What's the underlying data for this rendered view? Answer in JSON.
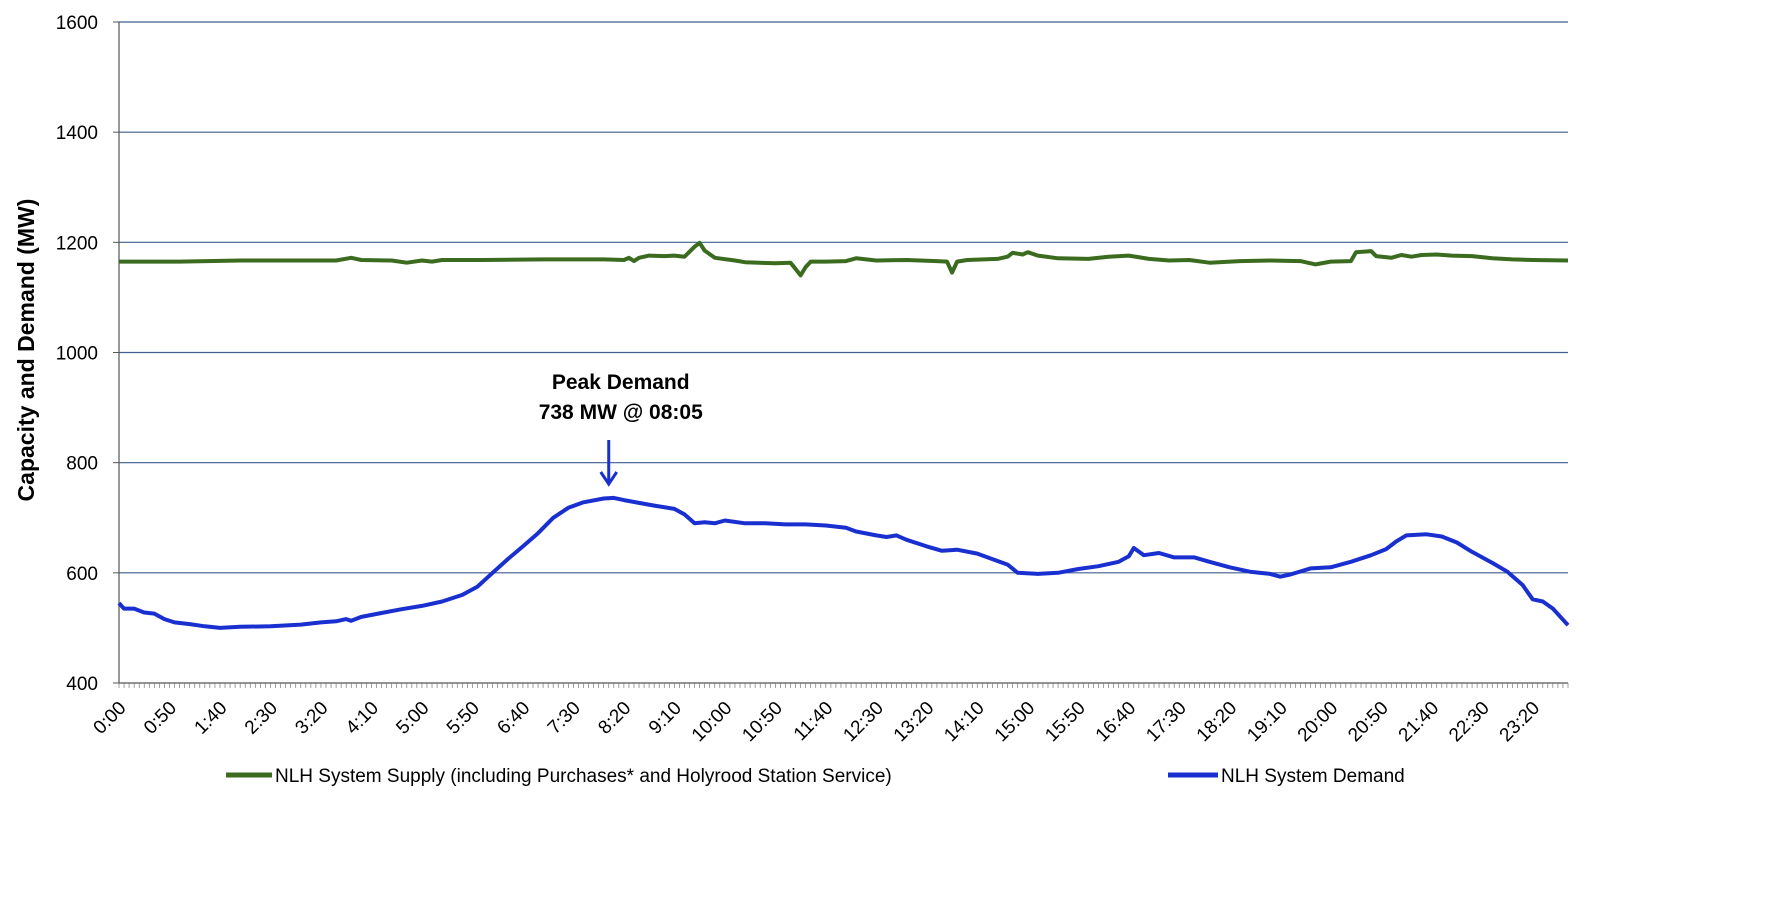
{
  "chart_data": {
    "type": "line",
    "title": "",
    "xlabel": "",
    "ylabel": "Capacity and Demand (MW)",
    "ylim": [
      400,
      1600
    ],
    "yticks": [
      400,
      600,
      800,
      1000,
      1200,
      1400,
      1600
    ],
    "xlim_minutes": [
      0,
      1435
    ],
    "x_tick_labels": [
      "0:00",
      "0:50",
      "1:40",
      "2:30",
      "3:20",
      "4:10",
      "5:00",
      "5:50",
      "6:40",
      "7:30",
      "8:20",
      "9:10",
      "10:00",
      "10:50",
      "11:40",
      "12:30",
      "13:20",
      "14:10",
      "15:00",
      "15:50",
      "16:40",
      "17:30",
      "18:20",
      "19:10",
      "20:00",
      "20:50",
      "21:40",
      "22:30",
      "23:20"
    ],
    "grid": "horizontal",
    "legend_position": "bottom",
    "series": [
      {
        "name": "NLH System Supply (including Purchases* and Holyrood Station Service)",
        "color": "#3a6b1f",
        "points": [
          [
            "0:00",
            1165
          ],
          [
            "1:00",
            1165
          ],
          [
            "2:00",
            1167
          ],
          [
            "3:00",
            1167
          ],
          [
            "3:35",
            1167
          ],
          [
            "3:50",
            1172
          ],
          [
            "4:00",
            1168
          ],
          [
            "4:30",
            1167
          ],
          [
            "4:45",
            1163
          ],
          [
            "5:00",
            1167
          ],
          [
            "5:10",
            1165
          ],
          [
            "5:20",
            1168
          ],
          [
            "6:00",
            1168
          ],
          [
            "7:00",
            1169
          ],
          [
            "8:00",
            1169
          ],
          [
            "8:20",
            1168
          ],
          [
            "8:25",
            1172
          ],
          [
            "8:30",
            1166
          ],
          [
            "8:35",
            1172
          ],
          [
            "8:45",
            1176
          ],
          [
            "9:00",
            1175
          ],
          [
            "9:10",
            1176
          ],
          [
            "9:20",
            1174
          ],
          [
            "9:30",
            1192
          ],
          [
            "9:35",
            1199
          ],
          [
            "9:40",
            1185
          ],
          [
            "9:50",
            1172
          ],
          [
            "10:10",
            1167
          ],
          [
            "10:20",
            1164
          ],
          [
            "10:50",
            1162
          ],
          [
            "11:05",
            1163
          ],
          [
            "11:10",
            1152
          ],
          [
            "11:15",
            1140
          ],
          [
            "11:20",
            1155
          ],
          [
            "11:25",
            1165
          ],
          [
            "11:40",
            1165
          ],
          [
            "12:00",
            1166
          ],
          [
            "12:10",
            1171
          ],
          [
            "12:30",
            1167
          ],
          [
            "13:00",
            1168
          ],
          [
            "13:30",
            1166
          ],
          [
            "13:40",
            1165
          ],
          [
            "13:45",
            1145
          ],
          [
            "13:50",
            1165
          ],
          [
            "14:00",
            1168
          ],
          [
            "14:30",
            1170
          ],
          [
            "14:40",
            1174
          ],
          [
            "14:45",
            1181
          ],
          [
            "14:55",
            1178
          ],
          [
            "15:00",
            1182
          ],
          [
            "15:10",
            1176
          ],
          [
            "15:30",
            1171
          ],
          [
            "16:00",
            1170
          ],
          [
            "16:20",
            1174
          ],
          [
            "16:40",
            1176
          ],
          [
            "17:00",
            1170
          ],
          [
            "17:20",
            1167
          ],
          [
            "17:40",
            1168
          ],
          [
            "18:00",
            1163
          ],
          [
            "18:30",
            1166
          ],
          [
            "19:00",
            1167
          ],
          [
            "19:30",
            1166
          ],
          [
            "19:45",
            1160
          ],
          [
            "20:00",
            1165
          ],
          [
            "20:20",
            1166
          ],
          [
            "20:25",
            1182
          ],
          [
            "20:40",
            1184
          ],
          [
            "20:45",
            1175
          ],
          [
            "21:00",
            1172
          ],
          [
            "21:10",
            1177
          ],
          [
            "21:20",
            1174
          ],
          [
            "21:30",
            1177
          ],
          [
            "21:45",
            1178
          ],
          [
            "22:00",
            1176
          ],
          [
            "22:20",
            1175
          ],
          [
            "22:40",
            1171
          ],
          [
            "23:00",
            1169
          ],
          [
            "23:20",
            1168
          ],
          [
            "23:55",
            1167
          ]
        ]
      },
      {
        "name": "NLH System Demand",
        "color": "#1a2fd0",
        "points": [
          [
            "0:00",
            545
          ],
          [
            "0:05",
            535
          ],
          [
            "0:15",
            535
          ],
          [
            "0:25",
            528
          ],
          [
            "0:35",
            526
          ],
          [
            "0:45",
            516
          ],
          [
            "0:55",
            510
          ],
          [
            "1:10",
            507
          ],
          [
            "1:25",
            503
          ],
          [
            "1:40",
            500
          ],
          [
            "2:00",
            502
          ],
          [
            "2:30",
            503
          ],
          [
            "3:00",
            506
          ],
          [
            "3:20",
            510
          ],
          [
            "3:35",
            512
          ],
          [
            "3:45",
            516
          ],
          [
            "3:50",
            513
          ],
          [
            "4:00",
            520
          ],
          [
            "4:20",
            527
          ],
          [
            "4:40",
            534
          ],
          [
            "5:00",
            540
          ],
          [
            "5:20",
            548
          ],
          [
            "5:40",
            560
          ],
          [
            "5:55",
            575
          ],
          [
            "6:10",
            600
          ],
          [
            "6:25",
            625
          ],
          [
            "6:40",
            648
          ],
          [
            "6:55",
            672
          ],
          [
            "7:10",
            700
          ],
          [
            "7:25",
            718
          ],
          [
            "7:40",
            728
          ],
          [
            "8:00",
            735
          ],
          [
            "8:10",
            736
          ],
          [
            "8:20",
            732
          ],
          [
            "8:35",
            727
          ],
          [
            "8:50",
            722
          ],
          [
            "9:10",
            716
          ],
          [
            "9:20",
            706
          ],
          [
            "9:30",
            690
          ],
          [
            "9:40",
            692
          ],
          [
            "9:50",
            690
          ],
          [
            "10:00",
            695
          ],
          [
            "10:20",
            690
          ],
          [
            "10:40",
            690
          ],
          [
            "11:00",
            688
          ],
          [
            "11:20",
            688
          ],
          [
            "11:40",
            686
          ],
          [
            "12:00",
            682
          ],
          [
            "12:10",
            675
          ],
          [
            "12:30",
            668
          ],
          [
            "12:40",
            665
          ],
          [
            "12:50",
            668
          ],
          [
            "13:00",
            660
          ],
          [
            "13:20",
            648
          ],
          [
            "13:35",
            640
          ],
          [
            "13:50",
            642
          ],
          [
            "14:10",
            635
          ],
          [
            "14:25",
            625
          ],
          [
            "14:40",
            615
          ],
          [
            "14:50",
            600
          ],
          [
            "15:10",
            598
          ],
          [
            "15:30",
            600
          ],
          [
            "15:50",
            607
          ],
          [
            "16:10",
            612
          ],
          [
            "16:30",
            620
          ],
          [
            "16:40",
            630
          ],
          [
            "16:45",
            645
          ],
          [
            "16:55",
            632
          ],
          [
            "17:10",
            636
          ],
          [
            "17:25",
            628
          ],
          [
            "17:45",
            628
          ],
          [
            "18:00",
            620
          ],
          [
            "18:20",
            610
          ],
          [
            "18:40",
            602
          ],
          [
            "19:00",
            598
          ],
          [
            "19:10",
            593
          ],
          [
            "19:20",
            597
          ],
          [
            "19:40",
            608
          ],
          [
            "20:00",
            610
          ],
          [
            "20:20",
            620
          ],
          [
            "20:40",
            632
          ],
          [
            "20:55",
            643
          ],
          [
            "21:05",
            657
          ],
          [
            "21:15",
            668
          ],
          [
            "21:35",
            670
          ],
          [
            "21:50",
            666
          ],
          [
            "22:05",
            655
          ],
          [
            "22:20",
            638
          ],
          [
            "22:40",
            618
          ],
          [
            "22:55",
            602
          ],
          [
            "23:10",
            578
          ],
          [
            "23:20",
            552
          ],
          [
            "23:30",
            548
          ],
          [
            "23:40",
            535
          ],
          [
            "23:50",
            515
          ],
          [
            "23:55",
            505
          ]
        ]
      }
    ],
    "annotations": [
      {
        "line1": "Peak Demand",
        "line2": "738 MW @ 08:05",
        "at_time": "8:05",
        "at_value": 738
      }
    ]
  }
}
